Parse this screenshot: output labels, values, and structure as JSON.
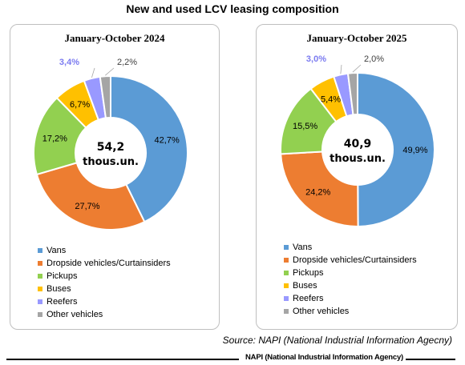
{
  "title": "New and used LCV leasing composition",
  "source": "Source: NAPI (National Industrial Information Agecny)",
  "footer_text": "NAPI (National Industrial Information Agency)",
  "categories": [
    "Vans",
    "Dropside vehicles/Curtainsiders",
    "Pickups",
    "Buses",
    "Reefers",
    "Other vehicles"
  ],
  "colors": [
    "#5b9bd5",
    "#ed7d31",
    "#92d050",
    "#ffc000",
    "#9999ff",
    "#a5a5a5"
  ],
  "chart_data": [
    {
      "type": "pie",
      "title": "January-October 2024",
      "center_value": "54,2",
      "center_unit": "thous.un.",
      "categories": [
        "Vans",
        "Dropside vehicles/Curtainsiders",
        "Pickups",
        "Buses",
        "Reefers",
        "Other vehicles"
      ],
      "values": [
        42.7,
        27.7,
        17.2,
        6.7,
        3.4,
        2.2
      ],
      "value_labels": [
        "42,7%",
        "27,7%",
        "17,2%",
        "6,7%",
        "3,4%",
        "2,2%"
      ],
      "legend": "bottom-left"
    },
    {
      "type": "pie",
      "title": "January-October 2025",
      "center_value": "40,9",
      "center_unit": "thous.un.",
      "categories": [
        "Vans",
        "Dropside vehicles/Curtainsiders",
        "Pickups",
        "Buses",
        "Reefers",
        "Other vehicles"
      ],
      "values": [
        49.9,
        24.2,
        15.5,
        5.4,
        3.0,
        2.0
      ],
      "value_labels": [
        "49,9%",
        "24,2%",
        "15,5%",
        "5,4%",
        "3,0%",
        "2,0%"
      ],
      "legend": "bottom-left"
    }
  ]
}
